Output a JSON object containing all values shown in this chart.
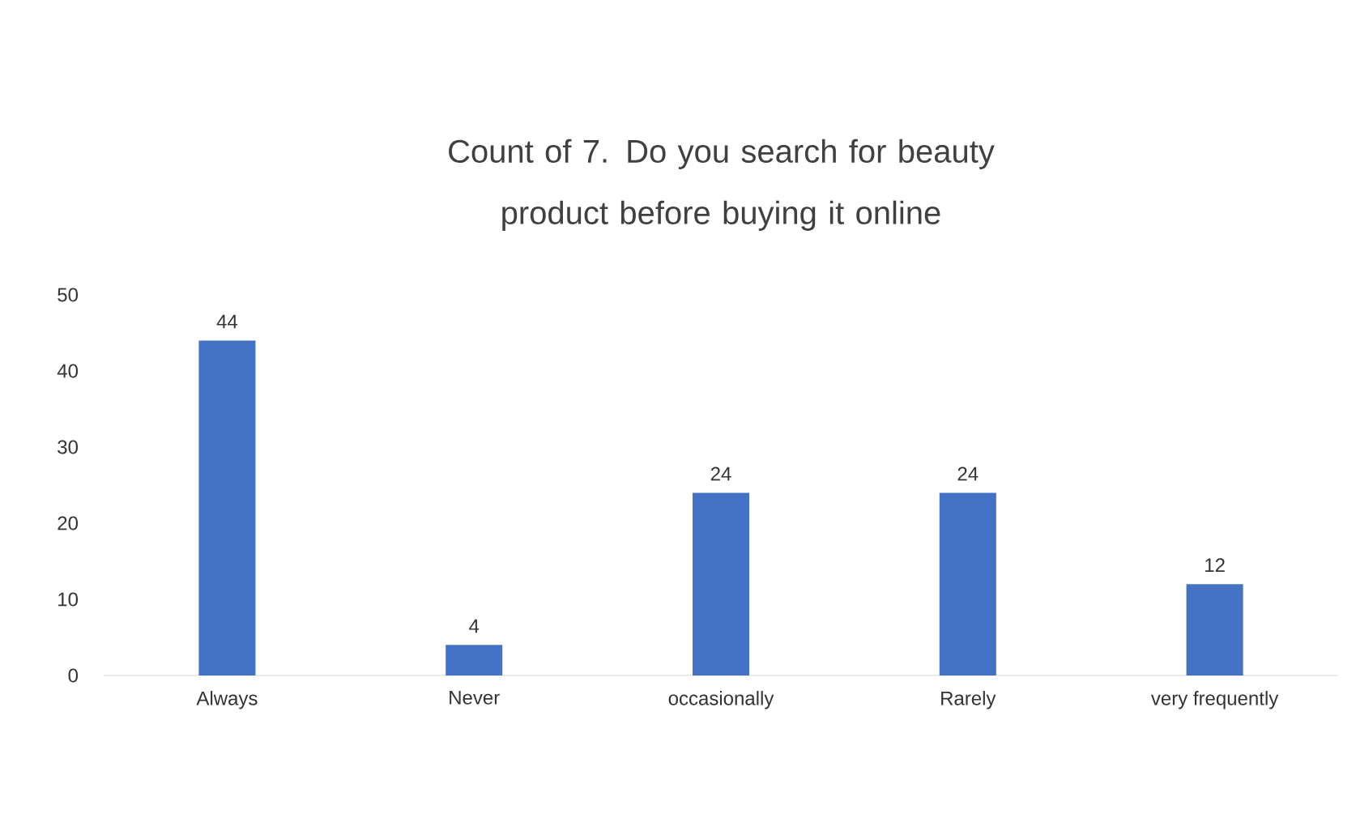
{
  "chart_data": {
    "type": "bar",
    "title": "Count of 7. Do you search for beauty product before buying it online",
    "categories": [
      "Always",
      "Never",
      "occasionally",
      "Rarely",
      "very frequently"
    ],
    "values": [
      44,
      4,
      24,
      24,
      12
    ],
    "color": "#4472c4",
    "ylim": [
      0,
      50
    ],
    "yticks": [
      0,
      10,
      20,
      30,
      40,
      50
    ],
    "data_labels": true
  }
}
